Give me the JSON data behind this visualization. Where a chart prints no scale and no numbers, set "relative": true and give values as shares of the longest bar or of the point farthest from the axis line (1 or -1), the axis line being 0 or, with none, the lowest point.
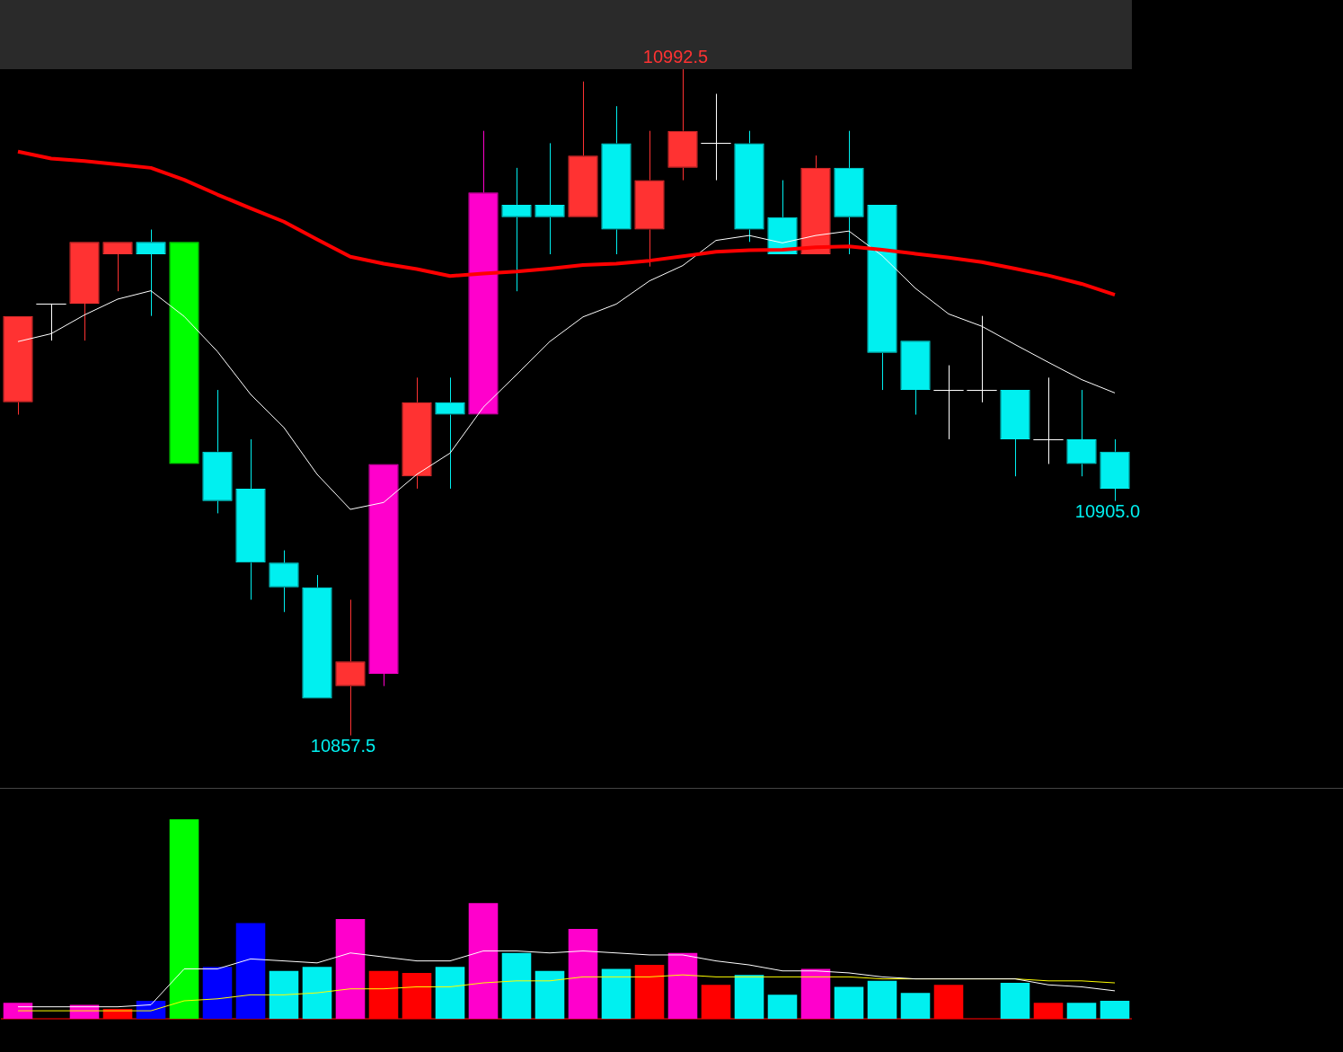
{
  "chart_data": [
    {
      "type": "candlestick",
      "categories": [
        null,
        null,
        null,
        null,
        null,
        null,
        null,
        null,
        null,
        null,
        null,
        null,
        null,
        null,
        null,
        null,
        null,
        null,
        null,
        null,
        null,
        null,
        null,
        null,
        null,
        null,
        null,
        null,
        null,
        null,
        null,
        null,
        null,
        null
      ],
      "ohlc": [
        [
          10925,
          10942.5,
          10922.5,
          10942.5
        ],
        [
          10945,
          10945,
          10937.5,
          10945
        ],
        [
          10945,
          10957.5,
          10937.5,
          10957.5
        ],
        [
          10955,
          10957.5,
          10947.5,
          10957.5
        ],
        [
          10957.5,
          10960,
          10942.5,
          10955
        ],
        [
          10957.5,
          10957.5,
          10912.5,
          10912.5
        ],
        [
          10915,
          10927.5,
          10902.5,
          10905
        ],
        [
          10907.5,
          10917.5,
          10885,
          10892.5
        ],
        [
          10892.5,
          10895,
          10882.5,
          10887.5
        ],
        [
          10887.5,
          10890,
          10865,
          10865
        ],
        [
          10867.5,
          10885,
          10857.5,
          10872.5
        ],
        [
          10870,
          10912.5,
          10867.5,
          10912.5
        ],
        [
          10910,
          10930,
          10907.5,
          10925
        ],
        [
          10925,
          10930,
          10907.5,
          10922.5
        ],
        [
          10922.5,
          10980,
          10922.5,
          10967.5
        ],
        [
          10965,
          10972.5,
          10947.5,
          10962.5
        ],
        [
          10965,
          10977.5,
          10955,
          10962.5
        ],
        [
          10962.5,
          10990,
          10962.5,
          10975
        ],
        [
          10977.5,
          10985,
          10955,
          10960
        ],
        [
          10960,
          10980,
          10952.5,
          10970
        ],
        [
          10972.5,
          10992.5,
          10970,
          10980
        ],
        [
          10977.5,
          10987.5,
          10970,
          10977.5
        ],
        [
          10977.5,
          10980,
          10957.5,
          10960
        ],
        [
          10962.5,
          10970,
          10955,
          10955
        ],
        [
          10955,
          10975,
          10955,
          10972.5
        ],
        [
          10972.5,
          10980,
          10955,
          10962.5
        ],
        [
          10965,
          10965,
          10927.5,
          10935
        ],
        [
          10937.5,
          10937.5,
          10922.5,
          10927.5
        ],
        [
          10927.5,
          10932.5,
          10917.5,
          10927.5
        ],
        [
          10927.5,
          10942.5,
          10925,
          10927.5
        ],
        [
          10927.5,
          10927.5,
          10910,
          10917.5
        ],
        [
          10917.5,
          10930,
          10912.5,
          10917.5
        ],
        [
          10917.5,
          10927.5,
          10910,
          10912.5
        ],
        [
          10915,
          10917.5,
          10905,
          10907.5
        ]
      ],
      "colors": [
        "#ff3232",
        "#ffffff",
        "#ff3232",
        "#ff3232",
        "#00f0f0",
        "#00ff00",
        "#00f0f0",
        "#00f0f0",
        "#00f0f0",
        "#00f0f0",
        "#ff3232",
        "#ff00cc",
        "#ff3232",
        "#00f0f0",
        "#ff00cc",
        "#00f0f0",
        "#00f0f0",
        "#ff3232",
        "#00f0f0",
        "#ff3232",
        "#ff3232",
        "#ffffff",
        "#00f0f0",
        "#00f0f0",
        "#ff3232",
        "#00f0f0",
        "#00f0f0",
        "#00f0f0",
        "#ffffff",
        "#ffffff",
        "#00f0f0",
        "#ffffff",
        "#00f0f0",
        "#00f0f0"
      ],
      "series": [
        {
          "type": "line",
          "color": "#ff0000",
          "values": [
            10975.8,
            10974.4,
            10973.9,
            10973.2,
            10972.5,
            10970.1,
            10967.1,
            10964.3,
            10961.6,
            10958.0,
            10954.5,
            10953.1,
            10952.0,
            10950.6,
            10951.1,
            10951.5,
            10952.1,
            10952.8,
            10953.1,
            10953.7,
            10954.6,
            10955.5,
            10955.8,
            10955.9,
            10956.4,
            10956.6,
            10955.9,
            10955.1,
            10954.3,
            10953.4,
            10952.1,
            10950.7,
            10949.0,
            10946.8
          ]
        },
        {
          "type": "line",
          "color": "#ffffff",
          "values": [
            10937.3,
            10938.9,
            10942.7,
            10945.9,
            10947.6,
            10942.4,
            10935.3,
            10926.6,
            10919.9,
            10910.4,
            10903.3,
            10904.7,
            10910.4,
            10914.7,
            10924.0,
            10930.6,
            10937.3,
            10942.3,
            10944.9,
            10949.6,
            10952.7,
            10957.8,
            10958.8,
            10957.3,
            10958.8,
            10959.7,
            10954.7,
            10948.1,
            10942.9,
            10940.4,
            10936.7,
            10933.1,
            10929.6,
            10926.9
          ]
        }
      ],
      "annotations": [
        "10992.5",
        "10857.5",
        "10905.0"
      ]
    },
    {
      "type": "bar",
      "relative": true,
      "categories": [
        null,
        null,
        null,
        null,
        null,
        null,
        null,
        null,
        null,
        null,
        null,
        null,
        null,
        null,
        null,
        null,
        null,
        null,
        null,
        null,
        null,
        null,
        null,
        null,
        null,
        null,
        null,
        null,
        null,
        null,
        null,
        null,
        null,
        null
      ],
      "series": [
        {
          "type": "bar",
          "colors": [
            "#ff00cc",
            "#ffffff",
            "#ff00cc",
            "#ff0000",
            "#0000ff",
            "#00ff00",
            "#0000ff",
            "#0000ff",
            "#00f0f0",
            "#00f0f0",
            "#ff00cc",
            "#ff0000",
            "#ff0000",
            "#00f0f0",
            "#ff00cc",
            "#00f0f0",
            "#00f0f0",
            "#ff00cc",
            "#00f0f0",
            "#ff0000",
            "#ff00cc",
            "#ff0000",
            "#00f0f0",
            "#00f0f0",
            "#ff00cc",
            "#00f0f0",
            "#00f0f0",
            "#00f0f0",
            "#ff0000",
            "#00f0f0",
            "#00f0f0",
            "#ff0000",
            "#00f0f0",
            "#00f0f0"
          ],
          "values": [
            0.08,
            0,
            0.07,
            0.05,
            0.09,
            1,
            0.26,
            0.48,
            0.24,
            0.26,
            0.5,
            0.24,
            0.23,
            0.26,
            0.58,
            0.33,
            0.24,
            0.45,
            0.25,
            0.27,
            0.33,
            0.17,
            0.22,
            0.12,
            0.25,
            0.16,
            0.19,
            0.13,
            0.17,
            0,
            0.18,
            0.08,
            0.08,
            0.09
          ]
        },
        {
          "type": "line",
          "color": "#ffffff",
          "values": [
            0.06,
            0.06,
            0.06,
            0.06,
            0.07,
            0.25,
            0.25,
            0.3,
            0.29,
            0.28,
            0.33,
            0.31,
            0.29,
            0.29,
            0.34,
            0.34,
            0.33,
            0.34,
            0.33,
            0.32,
            0.32,
            0.29,
            0.27,
            0.24,
            0.24,
            0.23,
            0.21,
            0.2,
            0.2,
            0.2,
            0.2,
            0.17,
            0.16,
            0.14
          ]
        },
        {
          "type": "line",
          "color": "#ffff00",
          "values": [
            0.04,
            0.04,
            0.04,
            0.04,
            0.04,
            0.09,
            0.1,
            0.12,
            0.12,
            0.13,
            0.15,
            0.15,
            0.16,
            0.16,
            0.18,
            0.19,
            0.19,
            0.21,
            0.21,
            0.21,
            0.22,
            0.21,
            0.21,
            0.21,
            0.21,
            0.21,
            0.2,
            0.2,
            0.2,
            0.2,
            0.2,
            0.19,
            0.19,
            0.18
          ]
        }
      ]
    }
  ]
}
